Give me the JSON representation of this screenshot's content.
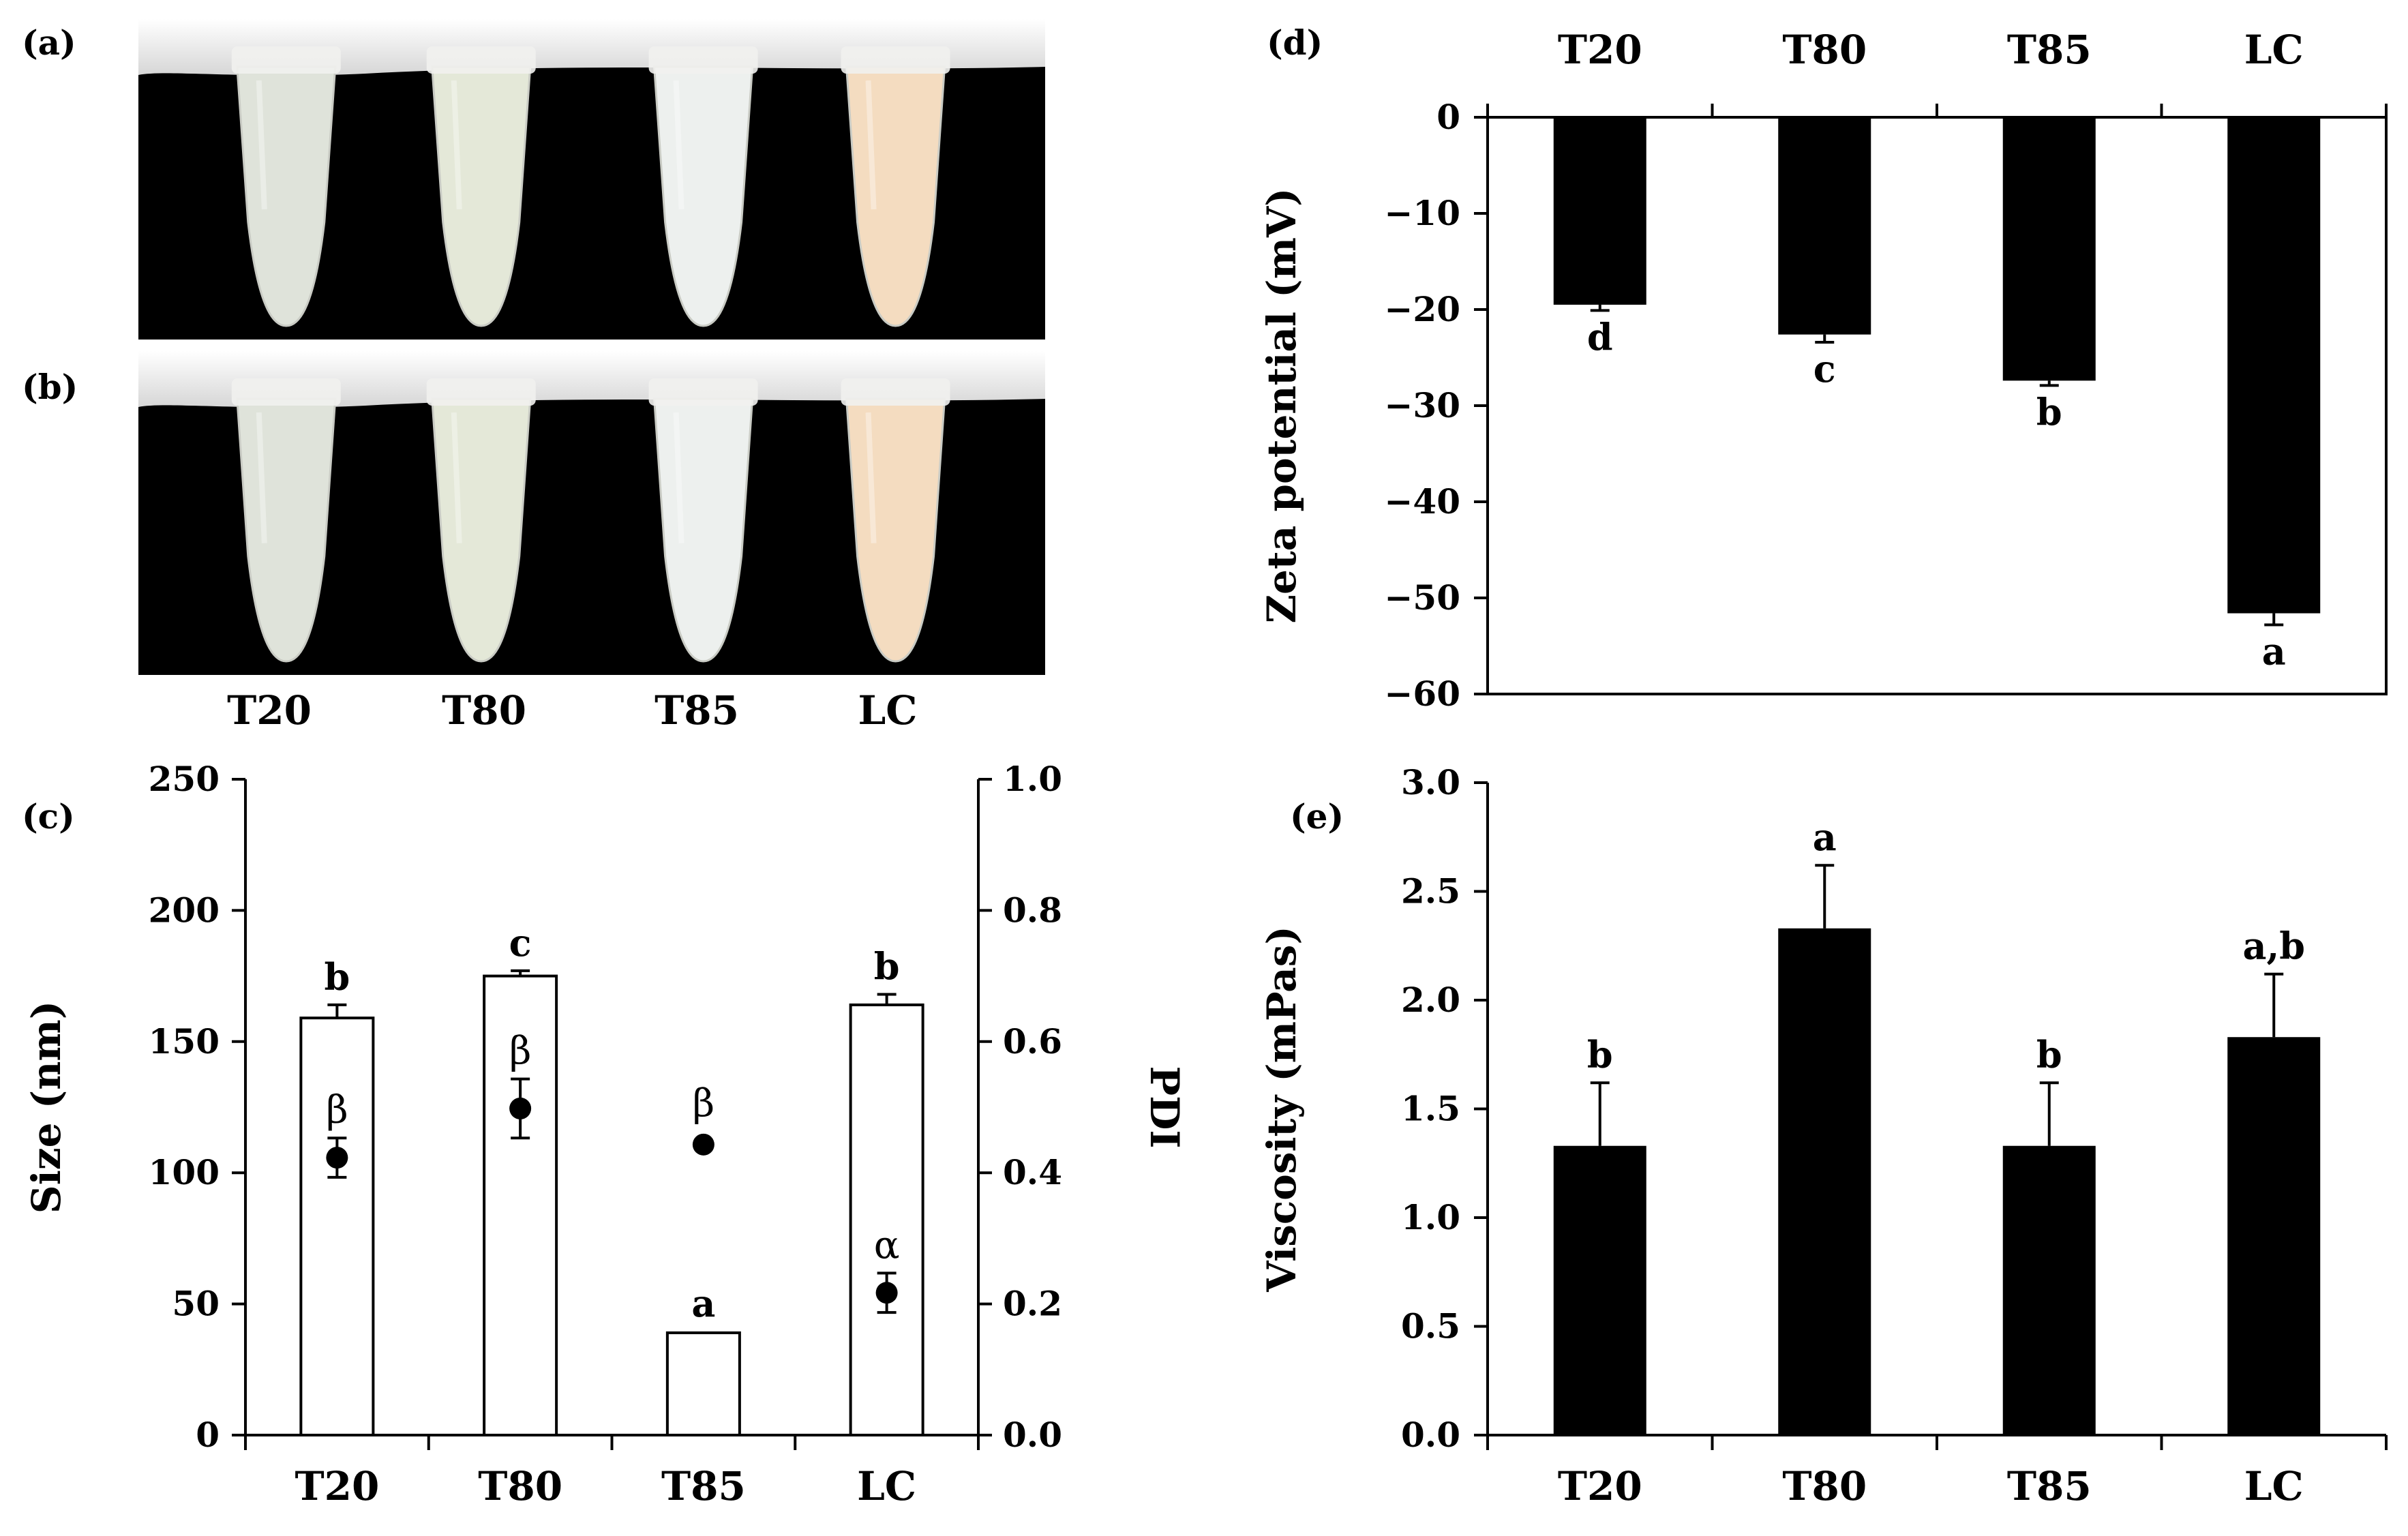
{
  "panels": {
    "a": "(a)",
    "b": "(b)",
    "c": "(c)",
    "d": "(d)",
    "e": "(e)"
  },
  "photo": {
    "tube_labels": [
      "T20",
      "T80",
      "T85",
      "LC"
    ],
    "background_color": "#000000",
    "cap_color": "#f3f3f3",
    "tube_colors": [
      "#dfe3da",
      "#e4e8d8",
      "#edf0ee",
      "#f4dcc0"
    ]
  },
  "chart_data": [
    {
      "id": "c",
      "type": "bar",
      "categories": [
        "T20",
        "T80",
        "T85",
        "LC"
      ],
      "series": [
        {
          "name": "Size",
          "values": [
            159,
            175,
            39,
            164
          ],
          "errors": [
            5,
            2,
            0.5,
            4
          ],
          "labels": [
            "b",
            "c",
            "a",
            "b"
          ],
          "fill": "#ffffff"
        },
        {
          "name": "PDI",
          "values": [
            0.423,
            0.498,
            0.443,
            0.217
          ],
          "errors": [
            0.03,
            0.045,
            0.0,
            0.03
          ],
          "labels": [
            "β",
            "β",
            "β",
            "α"
          ],
          "marker": "circle"
        }
      ],
      "ylabel": "Size (nm)",
      "ylim": [
        0,
        250
      ],
      "yticks": [
        "0",
        "50",
        "100",
        "150",
        "200",
        "250"
      ],
      "y2label": "PDI",
      "y2lim": [
        0.0,
        1.0
      ],
      "y2ticks": [
        "0.0",
        "0.2",
        "0.4",
        "0.6",
        "0.8",
        "1.0"
      ]
    },
    {
      "id": "d",
      "type": "bar",
      "categories": [
        "T20",
        "T80",
        "T85",
        "LC"
      ],
      "values": [
        -19.5,
        -22.6,
        -27.4,
        -51.6
      ],
      "errors": [
        0.6,
        0.8,
        0.5,
        1.2
      ],
      "labels": [
        "d",
        "c",
        "b",
        "a"
      ],
      "ylabel": "Zeta potential (mV)",
      "ylim": [
        -60,
        0
      ],
      "yticks": [
        "−60",
        "−50",
        "−40",
        "−30",
        "−20",
        "−10",
        "0"
      ],
      "fill": "#000000"
    },
    {
      "id": "e",
      "type": "bar",
      "categories": [
        "T20",
        "T80",
        "T85",
        "LC"
      ],
      "values": [
        1.33,
        2.33,
        1.33,
        1.83
      ],
      "errors": [
        0.29,
        0.29,
        0.29,
        0.29
      ],
      "labels": [
        "b",
        "a",
        "b",
        "a,b"
      ],
      "ylabel": "Viscosity (mPas)",
      "ylim": [
        0,
        3
      ],
      "yticks": [
        "0.0",
        "0.5",
        "1.0",
        "1.5",
        "2.0",
        "2.5",
        "3.0"
      ],
      "fill": "#000000"
    }
  ]
}
